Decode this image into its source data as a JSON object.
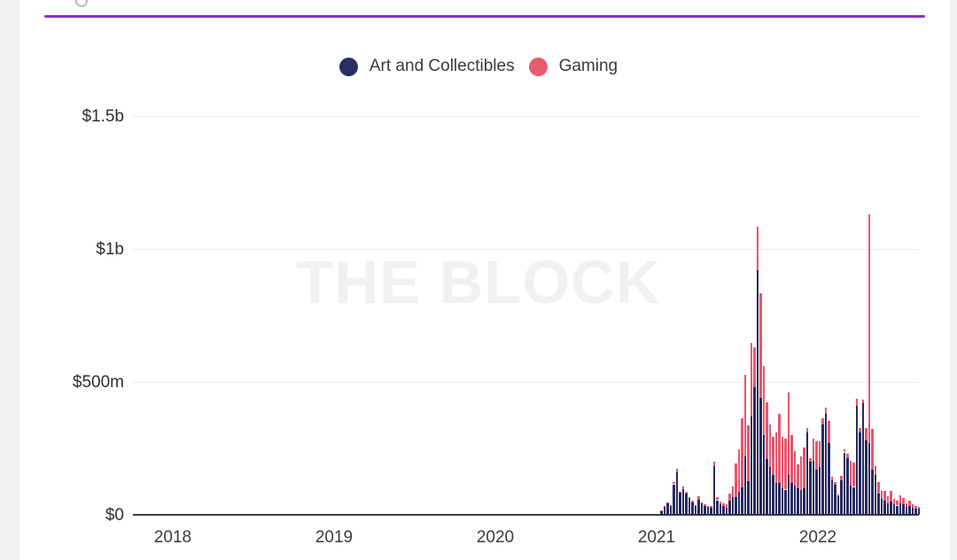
{
  "page": {
    "watermark": "THE BLOCK"
  },
  "accent_line_color": "#8e2fc9",
  "legend": {
    "items": [
      {
        "label": "Art and Collectibles",
        "color": "#2b2e63"
      },
      {
        "label": "Gaming",
        "color": "#e9596f"
      }
    ]
  },
  "chart_data": {
    "type": "bar",
    "stacked": true,
    "title": "",
    "xlabel": "",
    "ylabel": "",
    "grid": true,
    "legend_position": "top",
    "watermark": "THE BLOCK",
    "y_axis": {
      "unit": "$m",
      "ylim": [
        0,
        1600
      ],
      "ticks": [
        {
          "label": "$1.5b",
          "value": 1500
        },
        {
          "label": "$1b",
          "value": 1000
        },
        {
          "label": "$500m",
          "value": 500
        },
        {
          "label": "$0",
          "value": 0
        }
      ]
    },
    "x_axis": {
      "ticks": [
        "2018",
        "2019",
        "2020",
        "2021",
        "2022"
      ],
      "range_note": "x axis spans early 2018 to ~Sep 2022; weekly bars; all values ≈ $0 before Jan 2021"
    },
    "x_start": "2021-01 (first non-zero weekly bar)",
    "x_step": "1 week",
    "series": [
      {
        "name": "Art and Collectibles",
        "color": "#272a5e",
        "values": [
          15,
          32,
          42,
          33,
          115,
          160,
          82,
          98,
          80,
          62,
          48,
          33,
          58,
          42,
          35,
          30,
          28,
          185,
          55,
          40,
          32,
          28,
          55,
          68,
          66,
          87,
          105,
          220,
          127,
          370,
          480,
          920,
          440,
          300,
          210,
          180,
          150,
          120,
          120,
          100,
          95,
          150,
          120,
          110,
          100,
          95,
          100,
          310,
          200,
          203,
          170,
          180,
          340,
          380,
          270,
          130,
          112,
          70,
          130,
          235,
          215,
          110,
          105,
          410,
          310,
          420,
          280,
          270,
          170,
          150,
          80,
          60,
          55,
          45,
          50,
          40,
          35,
          45,
          40,
          30,
          35,
          28,
          25,
          22
        ]
      },
      {
        "name": "Gaming",
        "color": "#e8556f",
        "values": [
          2,
          3,
          4,
          3,
          8,
          15,
          6,
          8,
          7,
          6,
          5,
          4,
          12,
          6,
          5,
          5,
          6,
          15,
          12,
          10,
          10,
          12,
          25,
          40,
          127,
          160,
          260,
          307,
          210,
          277,
          150,
          165,
          395,
          260,
          215,
          160,
          145,
          190,
          260,
          193,
          192,
          310,
          180,
          130,
          90,
          125,
          153,
          17,
          13,
          84,
          107,
          97,
          25,
          23,
          85,
          13,
          13,
          8,
          17,
          12,
          15,
          93,
          92,
          27,
          17,
          15,
          47,
          860,
          155,
          35,
          45,
          30,
          35,
          25,
          40,
          20,
          18,
          30,
          22,
          15,
          20,
          12,
          10,
          8
        ]
      }
    ],
    "annotations": {
      "peak_art_week_total_m": 1085,
      "peak_gaming_spike_total_m": 1130
    }
  }
}
